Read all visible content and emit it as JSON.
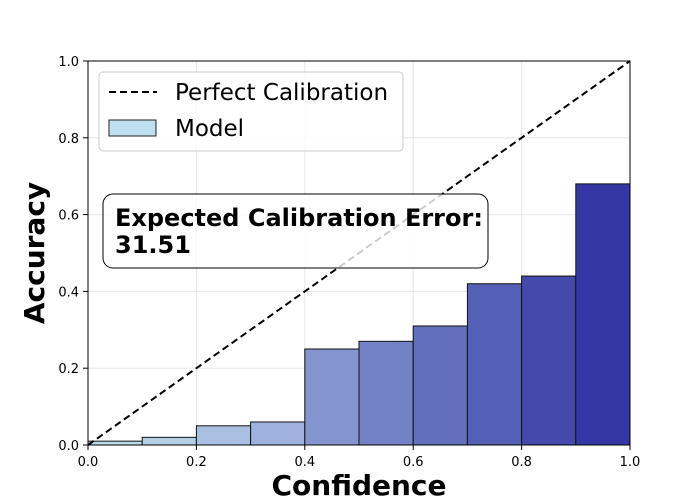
{
  "chart_data": {
    "type": "bar",
    "xlabel": "Confidence",
    "ylabel": "Accuracy",
    "xlim": [
      0,
      1
    ],
    "ylim": [
      0,
      1
    ],
    "x_ticks": [
      "0.0",
      "0.2",
      "0.4",
      "0.6",
      "0.8",
      "1.0"
    ],
    "y_ticks": [
      "0.0",
      "0.2",
      "0.4",
      "0.6",
      "0.8",
      "1.0"
    ],
    "grid": true,
    "bins": [
      {
        "x0": 0.0,
        "x1": 0.1,
        "value": 0.01
      },
      {
        "x0": 0.1,
        "x1": 0.2,
        "value": 0.02
      },
      {
        "x0": 0.2,
        "x1": 0.3,
        "value": 0.05
      },
      {
        "x0": 0.3,
        "x1": 0.4,
        "value": 0.06
      },
      {
        "x0": 0.4,
        "x1": 0.5,
        "value": 0.25
      },
      {
        "x0": 0.5,
        "x1": 0.6,
        "value": 0.27
      },
      {
        "x0": 0.6,
        "x1": 0.7,
        "value": 0.31
      },
      {
        "x0": 0.7,
        "x1": 0.8,
        "value": 0.42
      },
      {
        "x0": 0.8,
        "x1": 0.9,
        "value": 0.44
      },
      {
        "x0": 0.9,
        "x1": 1.0,
        "value": 0.68
      }
    ],
    "bar_colors": [
      "#bcdcea",
      "#b3cfe6",
      "#a9c0e2",
      "#9db2de",
      "#8494cf",
      "#7381c6",
      "#626fbd",
      "#5360b5",
      "#4449ab",
      "#3436a5"
    ],
    "reference_line": {
      "label": "Perfect Calibration",
      "x": [
        0,
        1
      ],
      "y": [
        0,
        1
      ],
      "style": "dashed",
      "color": "#000000"
    },
    "legend": {
      "placement": "top-left",
      "entries": [
        {
          "label": "Perfect Calibration",
          "marker": "dashed-line"
        },
        {
          "label": "Model",
          "marker": "patch",
          "color": "#bfe0ee"
        }
      ]
    },
    "annotation": {
      "line1": "Expected Calibration Error:",
      "line2": "31.51"
    }
  }
}
